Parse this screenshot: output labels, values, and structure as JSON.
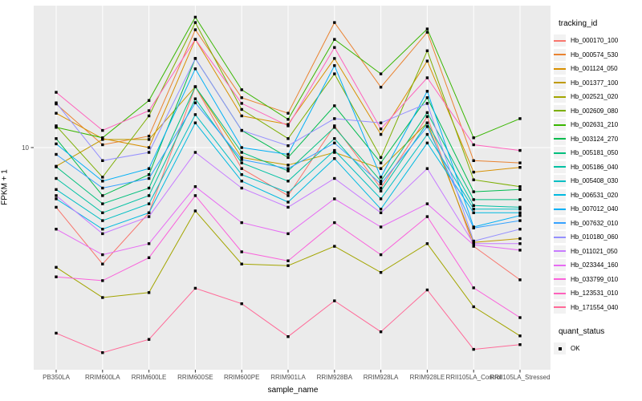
{
  "figure": {
    "background": "#FFFFFF",
    "panel_background": "#EBEBEB",
    "gridline_color": "#FFFFFF",
    "tick_color": "#333333",
    "tick_label_color": "#4D4D4D",
    "point_color": "#000000"
  },
  "axes": {
    "x_title": "sample_name",
    "y_title": "FPKM + 1",
    "y_tick_labels": [
      "10"
    ]
  },
  "legend": {
    "tracking_title": "tracking_id",
    "quant_title": "quant_status",
    "quant_items": [
      {
        "label": "OK",
        "symbol": "black-square-point"
      }
    ]
  },
  "chart_data": {
    "type": "line",
    "title": "",
    "xlabel": "sample_name",
    "ylabel": "FPKM + 1",
    "y_scale": "log10",
    "y_breaks": [
      10
    ],
    "ylim": [
      0.95,
      46
    ],
    "grid": true,
    "legend_position": "right",
    "marker": "black-square",
    "x_categories": [
      "PB350LA",
      "RRIM600LA",
      "RRIM600LE",
      "RRIM600SE",
      "RRIM600PE",
      "RRIM901LA",
      "RRIM928BA",
      "RRIM928LA",
      "RRIM928LE",
      "RRII105LA_Control",
      "RRII105LA_Stressed"
    ],
    "series": [
      {
        "name": "Hb_000170_100",
        "color": "#F8766D",
        "values": [
          5.3,
          2.9,
          5.0,
          19.1,
          8.0,
          6.0,
          12.6,
          6.5,
          13.9,
          3.5,
          2.45
        ]
      },
      {
        "name": "Hb_000574_530",
        "color": "#EA8331",
        "values": [
          15.9,
          10.3,
          11.3,
          35.0,
          17.0,
          14.4,
          37.8,
          19.0,
          34.1,
          8.7,
          8.5
        ]
      },
      {
        "name": "Hb_001124_050",
        "color": "#D89000",
        "values": [
          14.4,
          11.0,
          10.0,
          31.6,
          14.0,
          12.8,
          25.8,
          11.5,
          25.1,
          7.7,
          8.1
        ]
      },
      {
        "name": "Hb_001377_100",
        "color": "#C09B00",
        "values": [
          8.2,
          10.9,
          10.9,
          19.1,
          9.0,
          8.3,
          9.5,
          8.0,
          13.0,
          3.65,
          3.8
        ]
      },
      {
        "name": "Hb_002521_020",
        "color": "#A3A500",
        "values": [
          2.8,
          2.03,
          2.14,
          5.1,
          2.9,
          2.85,
          3.5,
          2.65,
          3.6,
          1.84,
          1.35
        ]
      },
      {
        "name": "Hb_002609_080",
        "color": "#7CAE00",
        "values": [
          12.6,
          7.3,
          14.0,
          37.8,
          15.0,
          11.0,
          21.9,
          9.0,
          28.0,
          7.1,
          6.6
        ]
      },
      {
        "name": "Hb_002631_210",
        "color": "#39B600",
        "values": [
          12.4,
          11.1,
          16.5,
          40.0,
          18.5,
          13.5,
          31.6,
          21.9,
          35.3,
          11.1,
          13.6
        ]
      },
      {
        "name": "Hb_003124_270",
        "color": "#00BB4E",
        "values": [
          11.0,
          6.0,
          7.5,
          25.8,
          12.0,
          9.0,
          15.6,
          8.5,
          17.0,
          6.25,
          6.4
        ]
      },
      {
        "name": "Hb_005181_050",
        "color": "#00BF7D",
        "values": [
          8.15,
          5.5,
          6.5,
          19.1,
          9.5,
          7.8,
          12.4,
          7.0,
          14.5,
          5.75,
          5.75
        ]
      },
      {
        "name": "Hb_005186_040",
        "color": "#00C1A3",
        "values": [
          7.2,
          5.0,
          6.0,
          16.8,
          8.5,
          7.0,
          11.0,
          6.3,
          13.0,
          5.4,
          5.3
        ]
      },
      {
        "name": "Hb_005408_030",
        "color": "#00BFC4",
        "values": [
          6.4,
          4.6,
          5.5,
          14.2,
          7.5,
          6.2,
          9.7,
          5.8,
          11.5,
          5.2,
          5.2
        ]
      },
      {
        "name": "Hb_006531_020",
        "color": "#00BAE0",
        "values": [
          5.8,
          4.2,
          5.0,
          13.0,
          7.0,
          5.6,
          8.9,
          5.2,
          10.5,
          5.0,
          5.0
        ]
      },
      {
        "name": "Hb_007012_040",
        "color": "#00B0F6",
        "values": [
          10.4,
          7.0,
          8.0,
          23.1,
          10.0,
          9.3,
          23.9,
          7.3,
          18.2,
          4.3,
          4.85
        ]
      },
      {
        "name": "Hb_007632_010",
        "color": "#35A2FF",
        "values": [
          9.3,
          6.5,
          7.2,
          16.1,
          8.8,
          8.0,
          10.5,
          6.8,
          12.5,
          4.25,
          4.6
        ]
      },
      {
        "name": "Hb_010180_060",
        "color": "#9590FF",
        "values": [
          16.1,
          8.7,
          9.5,
          25.8,
          12.0,
          10.2,
          13.6,
          13.0,
          16.0,
          3.7,
          4.2
        ]
      },
      {
        "name": "Hb_011021_050",
        "color": "#C77CFF",
        "values": [
          6.0,
          4.0,
          4.8,
          9.5,
          6.5,
          5.3,
          7.2,
          5.0,
          8.0,
          3.6,
          3.6
        ]
      },
      {
        "name": "Hb_023344_160",
        "color": "#E76BF3",
        "values": [
          4.2,
          3.2,
          3.6,
          6.6,
          4.5,
          4.0,
          5.8,
          4.3,
          5.5,
          3.55,
          3.36
        ]
      },
      {
        "name": "Hb_033799_010",
        "color": "#FA62DB",
        "values": [
          2.53,
          2.43,
          3.1,
          6.0,
          3.3,
          3.0,
          4.5,
          3.2,
          4.8,
          2.25,
          1.64
        ]
      },
      {
        "name": "Hb_123531_010",
        "color": "#FF62BC",
        "values": [
          18.0,
          12.0,
          14.8,
          31.6,
          16.0,
          12.6,
          29.0,
          12.2,
          21.0,
          10.3,
          9.7
        ]
      },
      {
        "name": "Hb_171554_040",
        "color": "#FF6A98",
        "values": [
          1.39,
          1.13,
          1.3,
          2.24,
          1.9,
          1.34,
          1.96,
          1.41,
          2.2,
          1.17,
          1.23
        ]
      }
    ]
  }
}
